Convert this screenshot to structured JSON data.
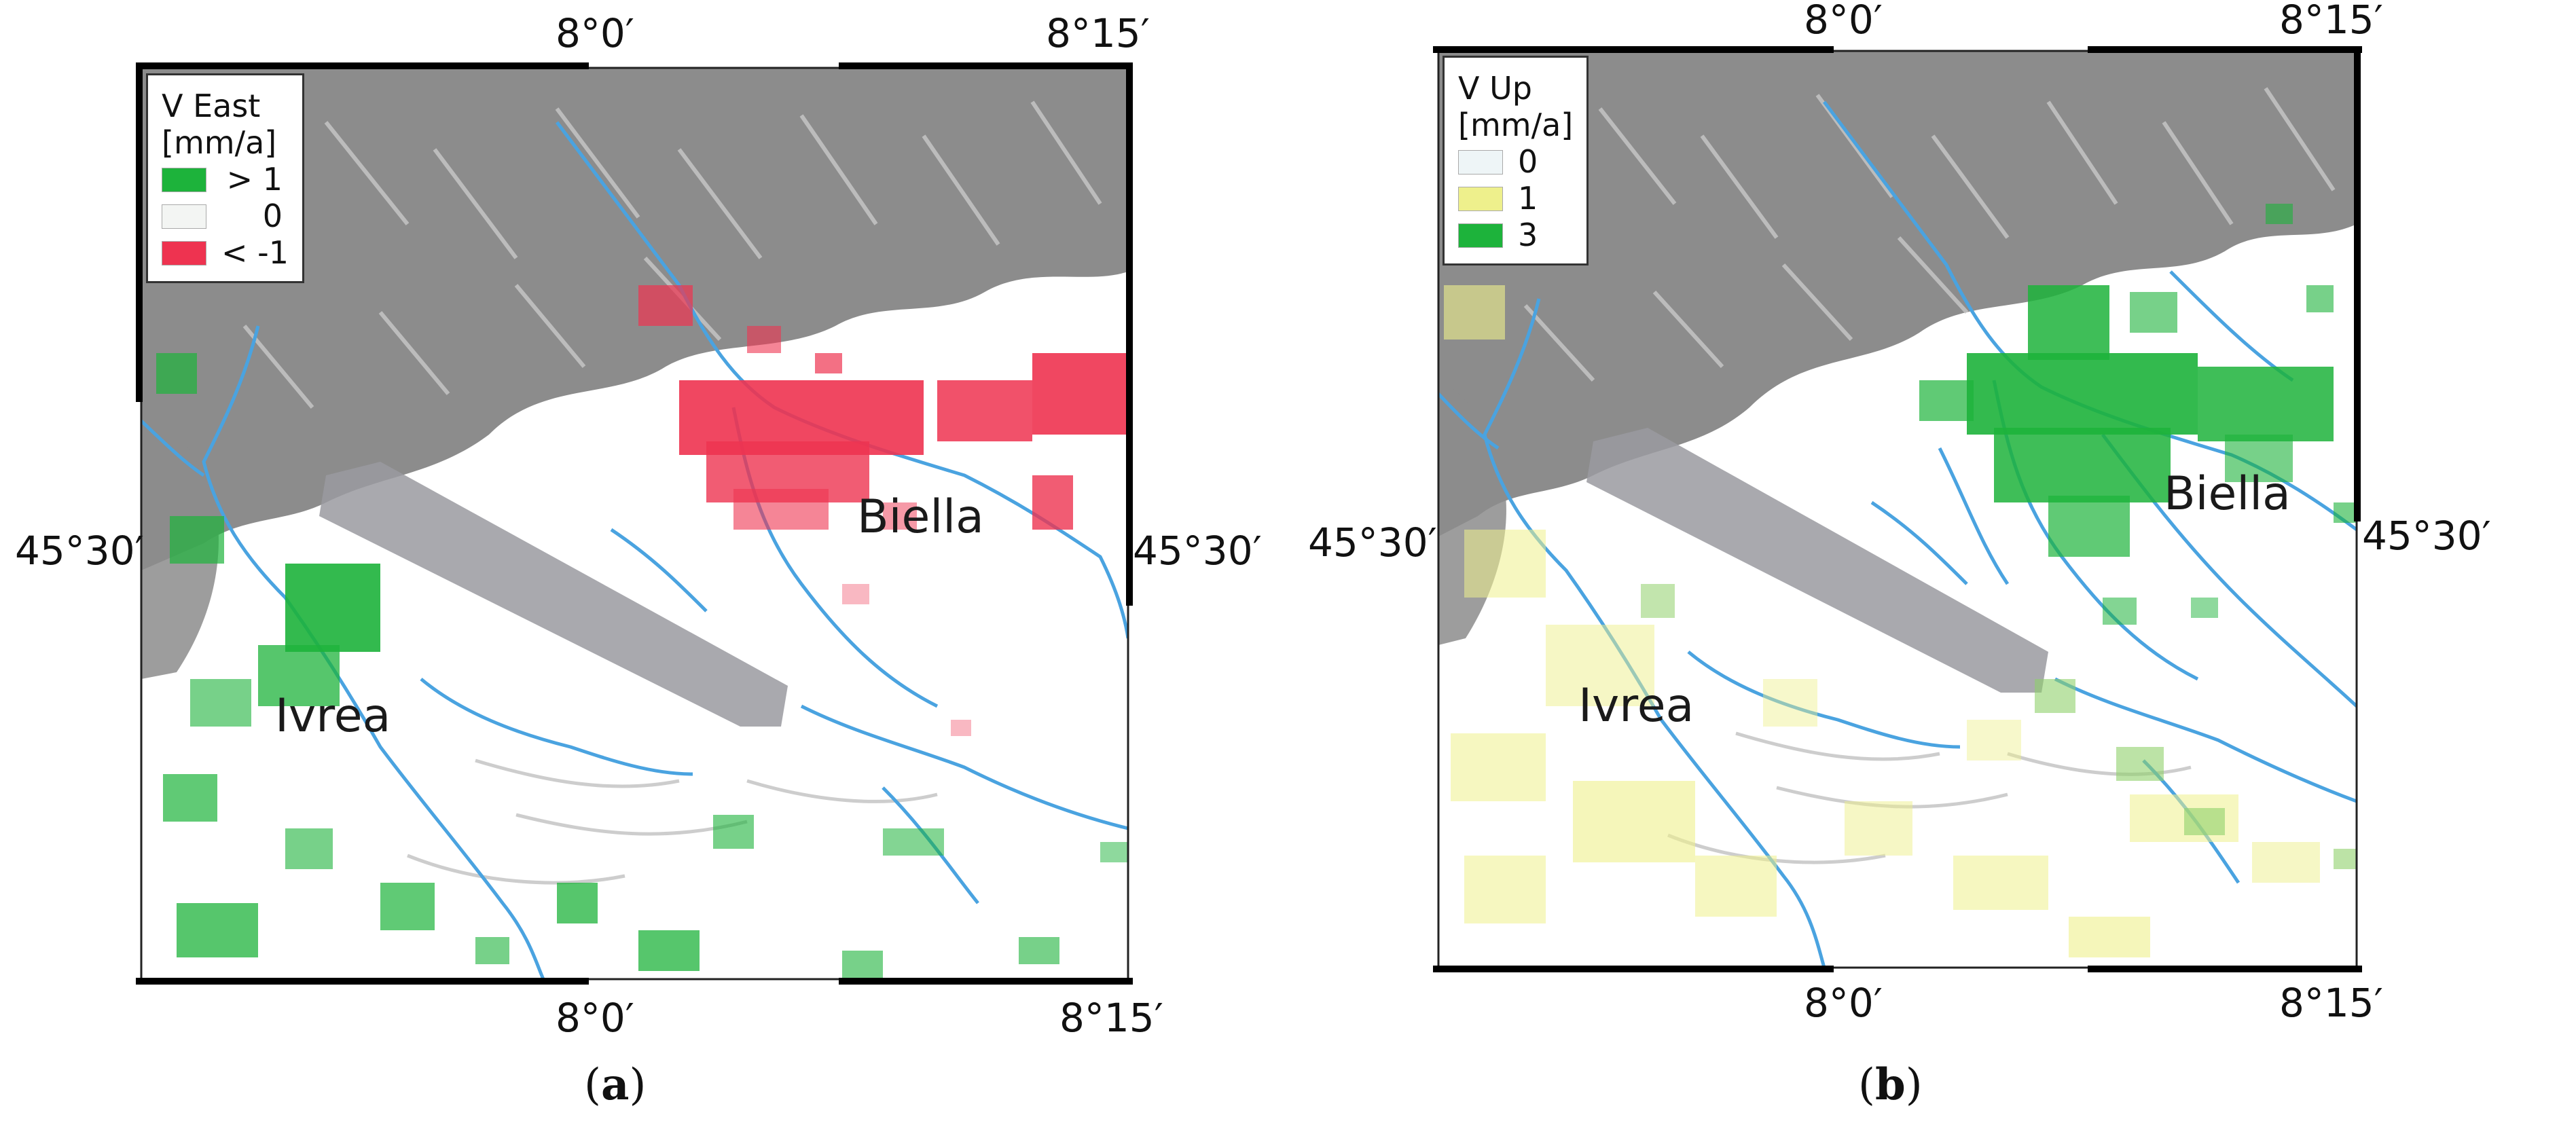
{
  "panels": [
    {
      "id": "a",
      "caption_letter": "a",
      "legend": {
        "title_line1": "V East",
        "title_line2": "[mm/a]",
        "items": [
          {
            "label": "> 1",
            "color": "#1db33b"
          },
          {
            "label": "0",
            "color": "#f3f5f3"
          },
          {
            "label": "< -1",
            "color": "#ee3350"
          }
        ]
      },
      "cities": [
        "Ivrea",
        "Biella"
      ],
      "top_ticks": [
        "8°0′",
        "8°15′"
      ],
      "bottom_ticks": [
        "8°0′",
        "8°15′"
      ],
      "left_lat": "45°30′",
      "right_lat": "45°30′"
    },
    {
      "id": "b",
      "caption_letter": "b",
      "legend": {
        "title_line1": "V Up",
        "title_line2": "[mm/a]",
        "items": [
          {
            "label": "0",
            "color": "#eef5f7"
          },
          {
            "label": "1",
            "color": "#eef08c"
          },
          {
            "label": "3",
            "color": "#1db33b"
          }
        ]
      },
      "cities": [
        "Ivrea",
        "Biella"
      ],
      "top_ticks": [
        "8°0′",
        "8°15′"
      ],
      "bottom_ticks": [
        "8°0′",
        "8°15′"
      ],
      "left_lat": "45°30′",
      "right_lat": "45°30′"
    }
  ],
  "colors": {
    "relief": "#8c8c8c",
    "river": "#4aa3e0",
    "ridge_band": "#9a9aa0"
  }
}
